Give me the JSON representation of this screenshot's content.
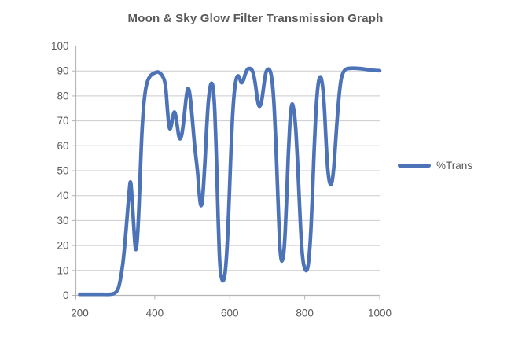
{
  "title": "Moon & Sky Glow Filter Transmission Graph",
  "legend": {
    "label": "%Trans"
  },
  "colors": {
    "series_blue": "#4c72b8",
    "text": "#595959",
    "gridline": "#c9cbcd",
    "axis": "#b3b5b7",
    "background": "#ffffff"
  },
  "chart_data": {
    "type": "line",
    "title": "Moon & Sky Glow Filter Transmission Graph",
    "xlabel": "",
    "ylabel": "",
    "xlim": [
      200,
      1000
    ],
    "ylim": [
      0,
      100
    ],
    "x_ticks": [
      200,
      400,
      600,
      800,
      1000
    ],
    "y_ticks": [
      0,
      10,
      20,
      30,
      40,
      50,
      60,
      70,
      80,
      90,
      100
    ],
    "grid": "horizontal",
    "legend_position": "right",
    "series": [
      {
        "name": "%Trans",
        "color": "#4c72b8",
        "smooth": true,
        "points": [
          [
            200,
            0.4
          ],
          [
            216,
            0.4
          ],
          [
            232,
            0.4
          ],
          [
            248,
            0.4
          ],
          [
            264,
            0.4
          ],
          [
            278,
            0.4
          ],
          [
            288,
            0.6
          ],
          [
            296,
            1.2
          ],
          [
            303,
            3
          ],
          [
            309,
            7
          ],
          [
            315,
            13
          ],
          [
            321,
            22
          ],
          [
            327,
            33
          ],
          [
            332,
            42
          ],
          [
            335,
            45.5
          ],
          [
            338,
            42
          ],
          [
            343,
            30
          ],
          [
            347,
            21
          ],
          [
            350,
            18.5
          ],
          [
            354,
            24
          ],
          [
            358,
            36
          ],
          [
            362,
            52
          ],
          [
            366,
            66
          ],
          [
            371,
            77
          ],
          [
            376,
            83
          ],
          [
            381,
            86
          ],
          [
            387,
            87.8
          ],
          [
            394,
            88.8
          ],
          [
            401,
            89.3
          ],
          [
            408,
            89.6
          ],
          [
            415,
            89
          ],
          [
            421,
            87.8
          ],
          [
            426,
            86
          ],
          [
            430,
            82
          ],
          [
            434,
            74
          ],
          [
            438,
            68
          ],
          [
            441,
            66.8
          ],
          [
            444,
            68.2
          ],
          [
            448,
            71.5
          ],
          [
            452,
            73.5
          ],
          [
            456,
            72
          ],
          [
            460,
            68
          ],
          [
            464,
            64
          ],
          [
            468,
            62.8
          ],
          [
            472,
            64.5
          ],
          [
            476,
            68.5
          ],
          [
            480,
            74
          ],
          [
            484,
            79.5
          ],
          [
            488,
            82.8
          ],
          [
            491,
            82.5
          ],
          [
            494,
            80
          ],
          [
            498,
            74.5
          ],
          [
            502,
            67.5
          ],
          [
            506,
            60.5
          ],
          [
            509,
            56.5
          ],
          [
            512,
            52.5
          ],
          [
            515,
            48
          ],
          [
            518,
            42
          ],
          [
            521,
            37.5
          ],
          [
            524,
            36
          ],
          [
            527,
            38
          ],
          [
            530,
            44
          ],
          [
            534,
            54
          ],
          [
            538,
            66
          ],
          [
            542,
            76
          ],
          [
            546,
            82
          ],
          [
            550,
            84.8
          ],
          [
            554,
            84.5
          ],
          [
            557,
            81
          ],
          [
            560,
            74
          ],
          [
            563,
            62
          ],
          [
            566,
            47
          ],
          [
            569,
            31
          ],
          [
            572,
            17.5
          ],
          [
            575,
            10
          ],
          [
            579,
            6.5
          ],
          [
            583,
            6
          ],
          [
            587,
            8.5
          ],
          [
            591,
            15
          ],
          [
            595,
            26
          ],
          [
            599,
            41
          ],
          [
            603,
            57
          ],
          [
            607,
            70.5
          ],
          [
            611,
            79.5
          ],
          [
            615,
            85
          ],
          [
            619,
            87.5
          ],
          [
            623,
            88
          ],
          [
            627,
            86.8
          ],
          [
            631,
            85.3
          ],
          [
            636,
            86.2
          ],
          [
            641,
            88.6
          ],
          [
            647,
            90.6
          ],
          [
            653,
            91
          ],
          [
            659,
            90.4
          ],
          [
            664,
            88.3
          ],
          [
            669,
            84
          ],
          [
            673,
            79.3
          ],
          [
            677,
            76.3
          ],
          [
            681,
            76
          ],
          [
            685,
            78
          ],
          [
            689,
            82
          ],
          [
            693,
            86.5
          ],
          [
            697,
            89.6
          ],
          [
            702,
            90.7
          ],
          [
            707,
            90.2
          ],
          [
            711,
            88
          ],
          [
            715,
            83
          ],
          [
            719,
            74
          ],
          [
            723,
            61
          ],
          [
            727,
            45
          ],
          [
            731,
            29
          ],
          [
            734,
            19
          ],
          [
            737,
            14.6
          ],
          [
            740,
            14
          ],
          [
            744,
            17
          ],
          [
            748,
            26
          ],
          [
            752,
            40
          ],
          [
            756,
            56
          ],
          [
            760,
            68
          ],
          [
            763,
            74
          ],
          [
            766,
            76.6
          ],
          [
            769,
            75.8
          ],
          [
            773,
            72
          ],
          [
            777,
            64.5
          ],
          [
            781,
            53
          ],
          [
            785,
            40
          ],
          [
            789,
            27
          ],
          [
            793,
            17.5
          ],
          [
            797,
            12.5
          ],
          [
            801,
            10.5
          ],
          [
            805,
            10
          ],
          [
            809,
            12
          ],
          [
            813,
            18
          ],
          [
            817,
            28
          ],
          [
            821,
            42
          ],
          [
            825,
            58
          ],
          [
            829,
            71
          ],
          [
            833,
            80.5
          ],
          [
            837,
            85.8
          ],
          [
            841,
            87.6
          ],
          [
            845,
            86.4
          ],
          [
            849,
            82
          ],
          [
            853,
            73.5
          ],
          [
            857,
            61.5
          ],
          [
            861,
            51.5
          ],
          [
            865,
            46.3
          ],
          [
            869,
            44.4
          ],
          [
            873,
            45.8
          ],
          [
            877,
            50.5
          ],
          [
            881,
            58.5
          ],
          [
            885,
            67.5
          ],
          [
            889,
            75.5
          ],
          [
            893,
            82
          ],
          [
            897,
            86.5
          ],
          [
            901,
            88.8
          ],
          [
            906,
            90.2
          ],
          [
            913,
            90.9
          ],
          [
            926,
            91.1
          ],
          [
            946,
            91
          ],
          [
            966,
            90.6
          ],
          [
            986,
            90.2
          ],
          [
            1000,
            90.1
          ]
        ]
      }
    ]
  }
}
